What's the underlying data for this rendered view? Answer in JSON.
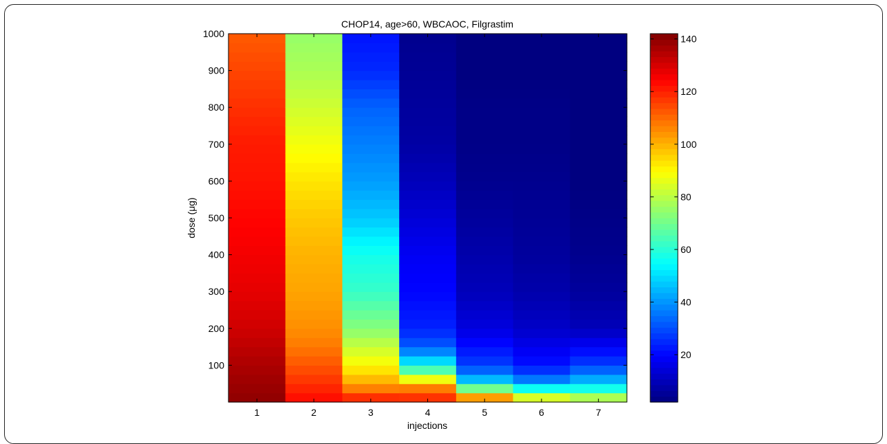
{
  "chart_data": {
    "type": "heatmap",
    "title": "CHOP14, age>60, WBCAOC, Filgrastim",
    "xlabel": "injections",
    "ylabel": "dose (μg)",
    "x_categories": [
      "1",
      "2",
      "3",
      "4",
      "5",
      "6",
      "7"
    ],
    "y_ticks": [
      100,
      200,
      300,
      400,
      500,
      600,
      700,
      800,
      900,
      1000
    ],
    "ylim": [
      0,
      1000
    ],
    "colorbar": {
      "colormap": "jet",
      "range": [
        2,
        142
      ],
      "ticks": [
        20,
        40,
        60,
        80,
        100,
        120,
        140
      ]
    },
    "dose_step": 25,
    "columns": [
      {
        "injections": "1",
        "anchors": [
          [
            0,
            140
          ],
          [
            100,
            136
          ],
          [
            200,
            131
          ],
          [
            300,
            128
          ],
          [
            400,
            126
          ],
          [
            500,
            124
          ],
          [
            600,
            122
          ],
          [
            700,
            121
          ],
          [
            800,
            118
          ],
          [
            900,
            115
          ],
          [
            1000,
            112
          ]
        ]
      },
      {
        "injections": "2",
        "anchors": [
          [
            0,
            124
          ],
          [
            25,
            121
          ],
          [
            50,
            118
          ],
          [
            100,
            113
          ],
          [
            150,
            108
          ],
          [
            200,
            105
          ],
          [
            300,
            102
          ],
          [
            400,
            100
          ],
          [
            500,
            97
          ],
          [
            600,
            93
          ],
          [
            700,
            88
          ],
          [
            800,
            83
          ],
          [
            900,
            78
          ],
          [
            1000,
            75
          ]
        ]
      },
      {
        "injections": "3",
        "anchors": [
          [
            0,
            124
          ],
          [
            25,
            112
          ],
          [
            50,
            102
          ],
          [
            75,
            96
          ],
          [
            100,
            90
          ],
          [
            150,
            82
          ],
          [
            200,
            73
          ],
          [
            300,
            62
          ],
          [
            400,
            57
          ],
          [
            500,
            47
          ],
          [
            600,
            41
          ],
          [
            700,
            37
          ],
          [
            800,
            33
          ],
          [
            900,
            25
          ],
          [
            1000,
            22
          ]
        ]
      },
      {
        "injections": "4",
        "anchors": [
          [
            0,
            120
          ],
          [
            25,
            115
          ],
          [
            50,
            100
          ],
          [
            75,
            75
          ],
          [
            100,
            55
          ],
          [
            150,
            32
          ],
          [
            200,
            24
          ],
          [
            300,
            20
          ],
          [
            400,
            18
          ],
          [
            500,
            14
          ],
          [
            600,
            10
          ],
          [
            700,
            7
          ],
          [
            800,
            6
          ],
          [
            900,
            5
          ],
          [
            1000,
            4
          ]
        ]
      },
      {
        "injections": "5",
        "anchors": [
          [
            0,
            118
          ],
          [
            25,
            88
          ],
          [
            50,
            52
          ],
          [
            75,
            38
          ],
          [
            100,
            28
          ],
          [
            200,
            15
          ],
          [
            300,
            10
          ],
          [
            400,
            8
          ],
          [
            500,
            6
          ],
          [
            600,
            4
          ],
          [
            700,
            3
          ],
          [
            800,
            3
          ],
          [
            900,
            2
          ],
          [
            1000,
            2
          ]
        ]
      },
      {
        "injections": "6",
        "anchors": [
          [
            0,
            98
          ],
          [
            25,
            70
          ],
          [
            50,
            42
          ],
          [
            75,
            30
          ],
          [
            100,
            22
          ],
          [
            200,
            12
          ],
          [
            300,
            8
          ],
          [
            400,
            6
          ],
          [
            500,
            5
          ],
          [
            600,
            4
          ],
          [
            700,
            3
          ],
          [
            800,
            3
          ],
          [
            900,
            2
          ],
          [
            1000,
            2
          ]
        ]
      },
      {
        "injections": "7",
        "anchors": [
          [
            0,
            90
          ],
          [
            25,
            66
          ],
          [
            50,
            48
          ],
          [
            75,
            38
          ],
          [
            100,
            28
          ],
          [
            200,
            10
          ],
          [
            300,
            6
          ],
          [
            400,
            4
          ],
          [
            500,
            3
          ],
          [
            600,
            2
          ],
          [
            700,
            2
          ],
          [
            800,
            2
          ],
          [
            900,
            2
          ],
          [
            1000,
            2
          ]
        ]
      }
    ]
  }
}
